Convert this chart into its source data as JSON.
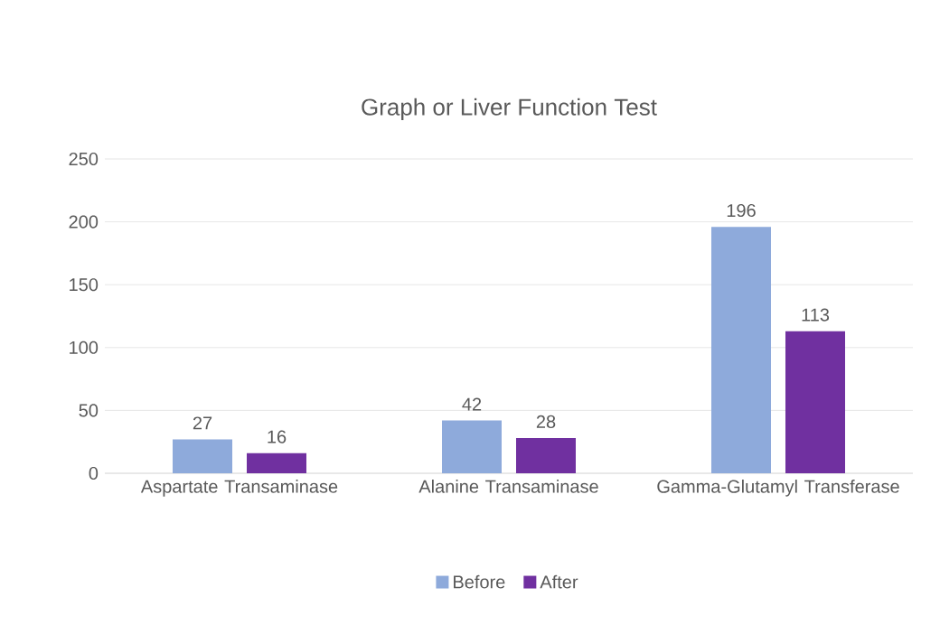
{
  "chart_data": {
    "type": "bar",
    "title": "Graph or Liver Function Test",
    "categories": [
      "Aspartate Transaminase",
      "Alanine Transaminase",
      "Gamma-Glutamyl Transferase"
    ],
    "series": [
      {
        "name": "Before",
        "color": "#8eaadb",
        "values": [
          27,
          42,
          196
        ]
      },
      {
        "name": "After",
        "color": "#7030a0",
        "values": [
          16,
          28,
          113
        ]
      }
    ],
    "ylim": [
      0,
      250
    ],
    "yticks": [
      0,
      50,
      100,
      150,
      200,
      250
    ],
    "grid": "y",
    "legend": "bottom",
    "data_labels": true
  }
}
